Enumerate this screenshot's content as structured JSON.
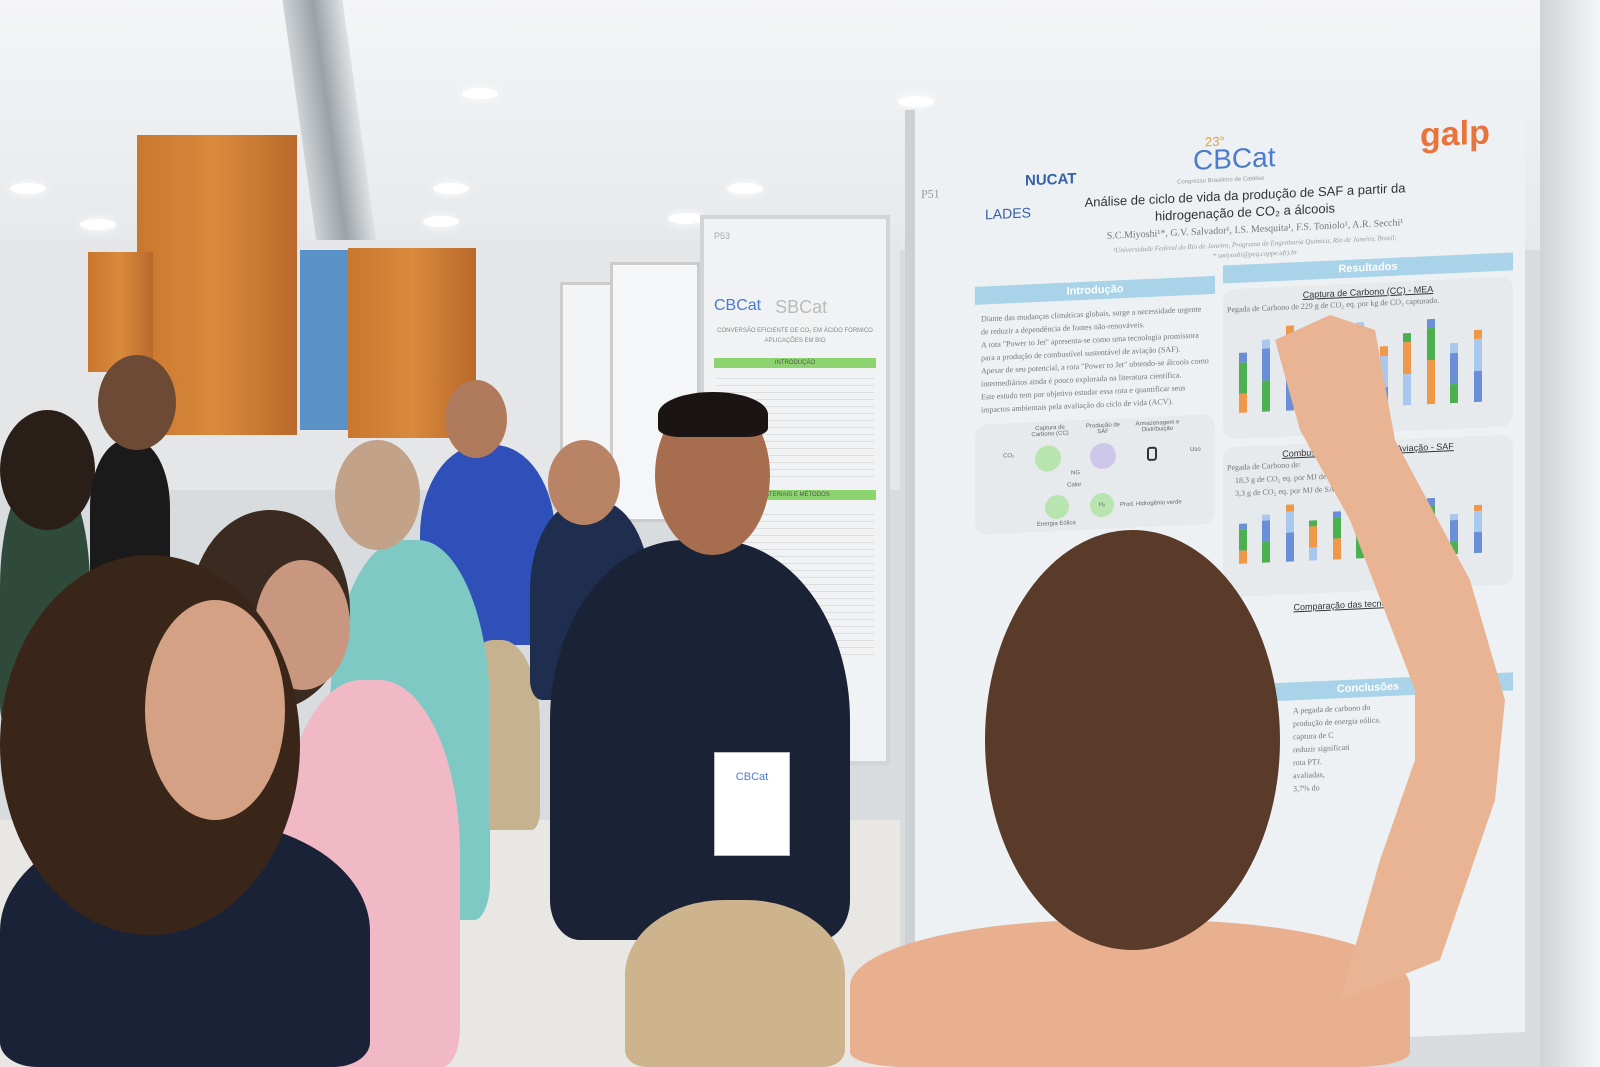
{
  "poster_main": {
    "number": "P51",
    "logos": [
      "NUCAT",
      "LADES",
      "23°",
      "CBCat",
      "galp"
    ],
    "cbcat_subtitle": "Congresso Brasileiro de Catálise",
    "title_line1": "Análise de ciclo de vida da produção de SAF a partir da",
    "title_line2": "hidrogenação de CO₂ a álcoois",
    "authors": "S.C.Miyoshi¹*, G.V. Salvador¹, I.S. Mesquita¹, F.S. Toniolo¹, A.R. Secchi¹",
    "affiliation": "¹Universidade Federal do Rio de Janeiro, Programa de Engenharia Química, Rio de Janeiro, Brazil;",
    "email": "* smiyoshi@peq.coppe.ufrj.br",
    "sections": {
      "intro": "Introdução",
      "results": "Resultados",
      "conclusions": "Conclusões"
    },
    "intro_bullets": [
      "Diante das mudanças climáticas globais, surge a necessidade urgente de reduzir a dependência de fontes não-renováveis.",
      "A rota \"Power to Jet\" apresenta-se como uma tecnologia promissora para a produção de combustível sustentável de aviação (SAF).",
      "Apesar de seu potencial, a rota \"Power to Jet\" obtendo-se álcoois como intermediários ainda é pouco explorada na literatura científica.",
      "Este estudo tem por objetivo estudar essa rota e quantificar seus impactos ambientais pela avaliação do ciclo de vida (ACV)."
    ],
    "diagram_labels": [
      "CO₂",
      "Captura de Carbono (CC)",
      "Produção de SAF",
      "Armazenagem e Distribuição",
      "Uso",
      "NG",
      "Calor",
      "H₂",
      "Prod. Hidrogênio verde",
      "Energia Eólica"
    ],
    "chart1_title": "Captura de Carbono (CC) - MEA",
    "chart1_note": "Pegada de Carbono de 229 g de CO₂ eq. por kg de CO₂ capturado.",
    "chart2_title": "Combustível Sustentável de Aviação - SAF",
    "chart2_intro": "Pegada de Carbono de:",
    "chart2_bullets": [
      "18,3 g de CO₂ eq. por MJ de SAF (MEA).",
      "3,3 g de CO₂ eq. por MJ de SAF (ambiental na captura)."
    ],
    "comparison_title": "Comparação das tecnologias de SAF",
    "conclusion_fragments": [
      "A pegada de carbono do",
      "produção de energia eólica.",
      "captura de C",
      "reduzir significati",
      "rota PTJ.",
      "avaliadas,",
      "3,7% do"
    ],
    "colors": {
      "section": "#a9d3e8",
      "green": "#4caf50",
      "orange": "#f0984a",
      "blue": "#6b8fd6",
      "lightblue": "#a8c8ee",
      "galp": "#e8743b"
    }
  },
  "poster_secondary": {
    "number": "P53",
    "logos": [
      "CBCat",
      "SBCat"
    ],
    "title": "CONVERSÃO EFICIENTE DE CO₂ EM ÁCIDO FÓRMICO",
    "subtitle": "APLICAÇÕES EM BIO",
    "sections": [
      "INTRODUÇÃO",
      "MATERIAIS E MÉTODOS"
    ]
  },
  "badge": {
    "logo": "CBCat"
  }
}
